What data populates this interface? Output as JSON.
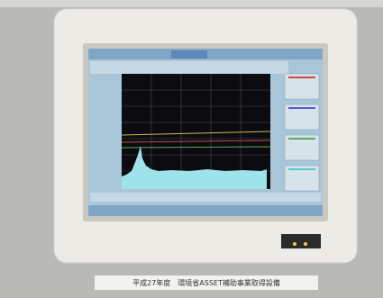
{
  "caption": "平成27年度　環境省ASSET補助事業取得設備"
}
